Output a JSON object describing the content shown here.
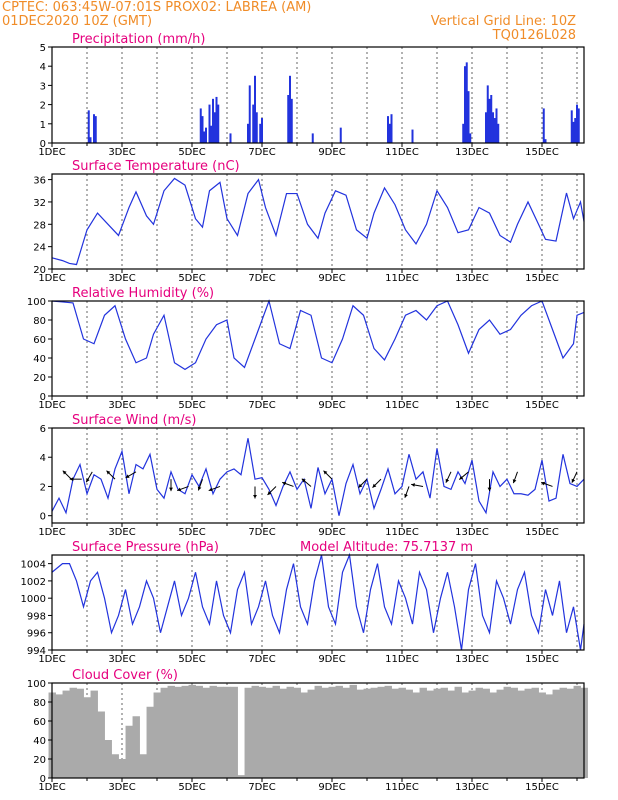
{
  "header": {
    "line1_left": "CPTEC:   063:45W-07:01S   PROX02: LABREA (AM)",
    "line2_left": "01DEC2020 10Z (GMT)",
    "line1_right": "Vertical Grid Line: 10Z",
    "line2_right": "TQ0126L028"
  },
  "colors": {
    "header": "#f08c28",
    "title": "#e6007e",
    "line": "#2233dd",
    "cloud": "#aaaaaa",
    "arrow": "#000000"
  },
  "x_tick_labels": [
    "1DEC",
    "3DEC",
    "5DEC",
    "7DEC",
    "9DEC",
    "11DEC",
    "13DEC",
    "15DEC"
  ],
  "chart_data": [
    {
      "type": "bar",
      "title": "Precipitation (mm/h)",
      "ylim": [
        0,
        5
      ],
      "yticks": [
        0,
        1,
        2,
        3,
        4,
        5
      ],
      "x_unit": "day",
      "xlim": [
        1,
        16.2
      ],
      "x": [
        2.05,
        2.1,
        2.2,
        2.25,
        5.25,
        5.3,
        5.35,
        5.4,
        5.5,
        5.55,
        5.6,
        5.65,
        5.7,
        5.75,
        6.1,
        6.6,
        6.65,
        6.75,
        6.8,
        6.85,
        6.95,
        7.0,
        7.75,
        7.8,
        7.85,
        8.45,
        9.25,
        10.6,
        10.65,
        10.7,
        11.3,
        12.75,
        12.8,
        12.85,
        12.9,
        12.95,
        13.4,
        13.45,
        13.5,
        13.55,
        13.6,
        13.65,
        13.7,
        13.75,
        15.05,
        15.1,
        15.85,
        15.9,
        15.95,
        16.0,
        16.05
      ],
      "values": [
        1.7,
        0.3,
        1.5,
        1.4,
        1.8,
        1.4,
        0.6,
        0.8,
        2.0,
        0.9,
        2.3,
        1.6,
        2.4,
        2.0,
        0.5,
        1.0,
        3.0,
        2.0,
        3.5,
        1.6,
        1.0,
        1.3,
        2.5,
        3.5,
        2.3,
        0.5,
        0.8,
        1.4,
        1.0,
        1.5,
        0.7,
        1.0,
        4.0,
        4.2,
        2.7,
        0.5,
        1.6,
        3.0,
        2.3,
        2.5,
        1.6,
        1.3,
        1.8,
        1.0,
        1.8,
        0.2,
        1.7,
        1.1,
        1.3,
        2.0,
        1.8
      ]
    },
    {
      "type": "line",
      "title": "Surface Temperature (nC)",
      "ylim": [
        20,
        37
      ],
      "yticks": [
        20,
        24,
        28,
        32,
        36
      ],
      "x_unit": "day",
      "xlim": [
        1,
        16.2
      ],
      "x": [
        1,
        1.3,
        1.5,
        1.7,
        2.0,
        2.3,
        2.6,
        2.9,
        3.2,
        3.4,
        3.7,
        3.9,
        4.2,
        4.5,
        4.8,
        5.1,
        5.3,
        5.5,
        5.8,
        6.0,
        6.3,
        6.6,
        6.9,
        7.1,
        7.4,
        7.7,
        8.0,
        8.3,
        8.6,
        8.8,
        9.1,
        9.4,
        9.7,
        10.0,
        10.2,
        10.5,
        10.8,
        11.1,
        11.4,
        11.7,
        12.0,
        12.3,
        12.6,
        12.9,
        13.2,
        13.5,
        13.8,
        14.1,
        14.3,
        14.6,
        14.9,
        15.1,
        15.4,
        15.7,
        15.9,
        16.1,
        16.2
      ],
      "values": [
        22,
        21.5,
        21,
        20.8,
        27,
        30,
        28,
        26,
        31,
        33.8,
        29.5,
        28,
        34,
        36.2,
        35,
        29,
        27.5,
        34,
        35.5,
        29,
        26,
        33.5,
        36,
        31,
        26,
        33.5,
        33.5,
        28,
        25.5,
        30,
        34,
        33.2,
        27,
        25.5,
        30,
        34.5,
        31.5,
        27,
        24.5,
        28,
        34,
        31,
        26.5,
        27,
        31,
        30,
        26,
        24.8,
        28,
        32,
        28,
        25.3,
        25,
        33.6,
        29,
        32,
        28.5
      ]
    },
    {
      "type": "line",
      "title": "Relative Humidity (%)",
      "ylim": [
        0,
        100
      ],
      "yticks": [
        0,
        20,
        40,
        60,
        80,
        100
      ],
      "x_unit": "day",
      "xlim": [
        1,
        16.2
      ],
      "x": [
        1,
        1.3,
        1.6,
        1.9,
        2.2,
        2.5,
        2.8,
        3.1,
        3.4,
        3.7,
        3.9,
        4.2,
        4.5,
        4.8,
        5.1,
        5.4,
        5.7,
        6.0,
        6.2,
        6.5,
        6.8,
        7.0,
        7.2,
        7.5,
        7.8,
        8.1,
        8.4,
        8.7,
        9.0,
        9.3,
        9.6,
        9.9,
        10.2,
        10.5,
        10.8,
        11.1,
        11.4,
        11.7,
        12.0,
        12.3,
        12.6,
        12.9,
        13.2,
        13.5,
        13.8,
        14.1,
        14.4,
        14.7,
        15.0,
        15.3,
        15.6,
        15.9,
        16.0,
        16.2
      ],
      "values": [
        100,
        99,
        98,
        60,
        55,
        85,
        95,
        60,
        35,
        40,
        65,
        85,
        35,
        28,
        35,
        60,
        75,
        80,
        40,
        30,
        60,
        80,
        100,
        55,
        50,
        90,
        85,
        40,
        35,
        60,
        95,
        85,
        50,
        38,
        60,
        85,
        90,
        80,
        95,
        100,
        75,
        45,
        70,
        80,
        65,
        70,
        85,
        95,
        100,
        70,
        40,
        55,
        85,
        88
      ]
    },
    {
      "type": "line",
      "title": "Surface Wind (m/s)",
      "ylim": [
        -0.5,
        6
      ],
      "yticks": [
        0,
        2,
        4,
        6
      ],
      "x_unit": "day",
      "xlim": [
        1,
        16.2
      ],
      "x": [
        1,
        1.2,
        1.4,
        1.6,
        1.8,
        2.0,
        2.2,
        2.4,
        2.6,
        2.8,
        3.0,
        3.2,
        3.4,
        3.6,
        3.8,
        4.0,
        4.2,
        4.4,
        4.6,
        4.8,
        5.0,
        5.2,
        5.4,
        5.6,
        5.8,
        6.0,
        6.2,
        6.4,
        6.6,
        6.8,
        7.0,
        7.2,
        7.4,
        7.6,
        7.8,
        8.0,
        8.2,
        8.4,
        8.6,
        8.8,
        9.0,
        9.2,
        9.4,
        9.6,
        9.8,
        10.0,
        10.2,
        10.4,
        10.6,
        10.8,
        11.0,
        11.2,
        11.4,
        11.6,
        11.8,
        12.0,
        12.2,
        12.4,
        12.6,
        12.8,
        13.0,
        13.2,
        13.4,
        13.6,
        13.8,
        14.0,
        14.2,
        14.4,
        14.6,
        14.8,
        15.0,
        15.2,
        15.4,
        15.6,
        15.8,
        16.0,
        16.2
      ],
      "values": [
        0.3,
        1.2,
        0.2,
        2.5,
        3.5,
        1.5,
        2.8,
        2.5,
        1.2,
        3.2,
        4.4,
        1.5,
        3.5,
        3.2,
        4.2,
        1.8,
        1.2,
        3.0,
        1.8,
        1.5,
        2.8,
        2.0,
        3.2,
        1.5,
        2.5,
        3.0,
        3.2,
        2.8,
        5.3,
        2.5,
        2.6,
        1.8,
        0.7,
        2.0,
        3.0,
        1.8,
        2.5,
        0.5,
        3.3,
        1.5,
        2.5,
        0.0,
        2.2,
        3.5,
        1.5,
        2.5,
        0.5,
        1.8,
        3.2,
        1.5,
        2.0,
        4.2,
        2.5,
        3.0,
        1.2,
        4.6,
        2.0,
        1.8,
        3.0,
        2.2,
        3.8,
        1.0,
        0.2,
        3.0,
        2.0,
        2.5,
        1.5,
        1.5,
        1.4,
        1.8,
        3.8,
        1.0,
        1.2,
        4.2,
        2.2,
        2.0,
        2.5
      ],
      "arrows": [
        {
          "day": 1.55,
          "dir_deg": 135,
          "speed": 2.5
        },
        {
          "day": 1.85,
          "dir_deg": 180,
          "speed": 2.5
        },
        {
          "day": 2.15,
          "dir_deg": 240,
          "speed": 3.0
        },
        {
          "day": 2.8,
          "dir_deg": 135,
          "speed": 2.5
        },
        {
          "day": 3.4,
          "dir_deg": 210,
          "speed": 3.0
        },
        {
          "day": 4.4,
          "dir_deg": 270,
          "speed": 2.5
        },
        {
          "day": 4.9,
          "dir_deg": 200,
          "speed": 2.0
        },
        {
          "day": 5.3,
          "dir_deg": 250,
          "speed": 2.5
        },
        {
          "day": 5.8,
          "dir_deg": 200,
          "speed": 2.0
        },
        {
          "day": 6.8,
          "dir_deg": 270,
          "speed": 2.0
        },
        {
          "day": 7.4,
          "dir_deg": 225,
          "speed": 2.0
        },
        {
          "day": 7.9,
          "dir_deg": 160,
          "speed": 2.0
        },
        {
          "day": 8.4,
          "dir_deg": 140,
          "speed": 2.0
        },
        {
          "day": 9.0,
          "dir_deg": 135,
          "speed": 2.5
        },
        {
          "day": 10.0,
          "dir_deg": 225,
          "speed": 2.5
        },
        {
          "day": 10.4,
          "dir_deg": 225,
          "speed": 2.5
        },
        {
          "day": 11.2,
          "dir_deg": 250,
          "speed": 2.0
        },
        {
          "day": 11.6,
          "dir_deg": 170,
          "speed": 2.0
        },
        {
          "day": 12.4,
          "dir_deg": 245,
          "speed": 3.0
        },
        {
          "day": 12.9,
          "dir_deg": 220,
          "speed": 3.0
        },
        {
          "day": 13.5,
          "dir_deg": 270,
          "speed": 2.5
        },
        {
          "day": 14.3,
          "dir_deg": 250,
          "speed": 3.0
        },
        {
          "day": 15.3,
          "dir_deg": 160,
          "speed": 2.0
        },
        {
          "day": 16.0,
          "dir_deg": 245,
          "speed": 3.0
        }
      ]
    },
    {
      "type": "line",
      "title": "Surface Pressure (hPa)",
      "annotation": "Model Altitude: 75.7137 m",
      "ylim": [
        994,
        1005
      ],
      "yticks": [
        994,
        996,
        998,
        1000,
        1002,
        1004
      ],
      "x_unit": "day",
      "xlim": [
        1,
        16.2
      ],
      "x": [
        1,
        1.3,
        1.5,
        1.7,
        1.9,
        2.1,
        2.3,
        2.5,
        2.7,
        2.9,
        3.1,
        3.3,
        3.5,
        3.7,
        3.9,
        4.1,
        4.3,
        4.5,
        4.7,
        4.9,
        5.1,
        5.3,
        5.5,
        5.7,
        5.9,
        6.1,
        6.3,
        6.5,
        6.7,
        6.9,
        7.1,
        7.3,
        7.5,
        7.7,
        7.9,
        8.1,
        8.3,
        8.5,
        8.7,
        8.9,
        9.1,
        9.3,
        9.5,
        9.7,
        9.9,
        10.1,
        10.3,
        10.5,
        10.7,
        10.9,
        11.1,
        11.3,
        11.5,
        11.7,
        11.9,
        12.1,
        12.3,
        12.5,
        12.7,
        12.9,
        13.1,
        13.3,
        13.5,
        13.7,
        13.9,
        14.1,
        14.3,
        14.5,
        14.7,
        14.9,
        15.1,
        15.3,
        15.5,
        15.7,
        15.9,
        16.1,
        16.2
      ],
      "values": [
        1003,
        1004,
        1004,
        1002,
        999,
        1002,
        1003,
        1000,
        996,
        998,
        1001,
        997,
        999,
        1002,
        1000,
        996,
        999,
        1002,
        998,
        1000,
        1003,
        999,
        997,
        1002,
        998,
        996,
        1001,
        1003,
        997,
        999,
        1002,
        998,
        996,
        1001,
        1004,
        999,
        997,
        1002,
        1005,
        999,
        997,
        1003,
        1005,
        999,
        996,
        1001,
        1004,
        999,
        997,
        1002,
        1000,
        997,
        1003,
        1001,
        996,
        1000,
        1003,
        999,
        994,
        1001,
        1004,
        998,
        996,
        1002,
        1000,
        997,
        1001,
        1003,
        998,
        996,
        1001,
        998,
        1002,
        996,
        999,
        994,
        997
      ]
    },
    {
      "type": "bar",
      "title": "Cloud Cover (%)",
      "ylim": [
        0,
        100
      ],
      "yticks": [
        0,
        20,
        40,
        60,
        80,
        100
      ],
      "x_unit": "day",
      "xlim": [
        1,
        16.2
      ],
      "x": [
        1.0,
        1.2,
        1.4,
        1.6,
        1.8,
        2.0,
        2.2,
        2.4,
        2.6,
        2.8,
        3.0,
        3.2,
        3.4,
        3.6,
        3.8,
        4.0,
        4.2,
        4.4,
        4.6,
        4.8,
        5.0,
        5.2,
        5.4,
        5.6,
        5.8,
        6.0,
        6.2,
        6.4,
        6.6,
        6.8,
        7.0,
        7.2,
        7.4,
        7.6,
        7.8,
        8.0,
        8.2,
        8.4,
        8.6,
        8.8,
        9.0,
        9.2,
        9.4,
        9.6,
        9.8,
        10.0,
        10.2,
        10.4,
        10.6,
        10.8,
        11.0,
        11.2,
        11.4,
        11.6,
        11.8,
        12.0,
        12.2,
        12.4,
        12.6,
        12.8,
        13.0,
        13.2,
        13.4,
        13.6,
        13.8,
        14.0,
        14.2,
        14.4,
        14.6,
        14.8,
        15.0,
        15.2,
        15.4,
        15.6,
        15.8,
        16.0,
        16.2
      ],
      "values": [
        90,
        88,
        92,
        95,
        94,
        85,
        92,
        70,
        40,
        25,
        20,
        55,
        65,
        25,
        75,
        90,
        95,
        97,
        96,
        97,
        98,
        97,
        95,
        97,
        96,
        96,
        96,
        3,
        95,
        97,
        96,
        95,
        97,
        94,
        96,
        95,
        90,
        93,
        97,
        95,
        96,
        97,
        95,
        98,
        93,
        94,
        95,
        96,
        97,
        94,
        95,
        93,
        90,
        95,
        92,
        94,
        95,
        92,
        96,
        90,
        92,
        95,
        94,
        90,
        93,
        96,
        95,
        92,
        94,
        95,
        90,
        88,
        93,
        95,
        94,
        97,
        95
      ]
    }
  ]
}
